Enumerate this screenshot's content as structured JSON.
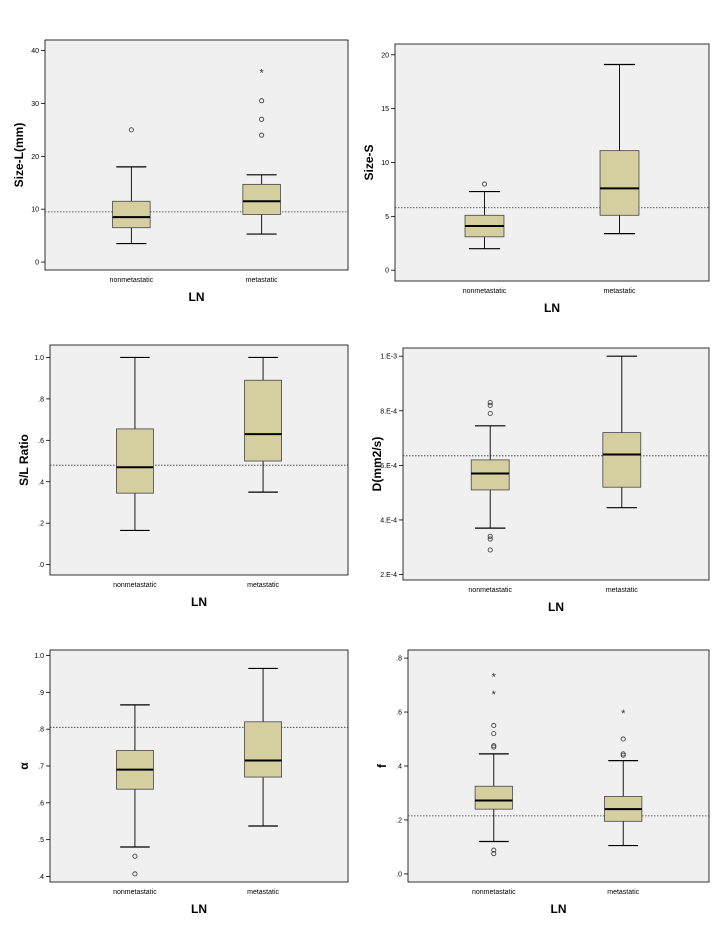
{
  "chart_data": [
    {
      "type": "box",
      "title": "",
      "xlabel": "LN",
      "ylabel": "Size-L(mm)",
      "ylim": [
        -1.5,
        42
      ],
      "yticks": [
        0,
        10,
        20,
        30,
        40
      ],
      "ytick_labels": [
        "0",
        "10",
        "20",
        "30",
        "40"
      ],
      "reference_line": 9.5,
      "categories": [
        "nonmetastatic",
        "metastatic"
      ],
      "boxes": [
        {
          "min": 3.5,
          "q1": 6.5,
          "median": 8.5,
          "q3": 11.5,
          "max": 18,
          "outliers": [
            25
          ],
          "extremes": []
        },
        {
          "min": 5.3,
          "q1": 9,
          "median": 11.5,
          "q3": 14.7,
          "max": 16.5,
          "outliers": [
            30.5,
            27,
            24
          ],
          "extremes": [
            36
          ]
        }
      ]
    },
    {
      "type": "box",
      "title": "",
      "xlabel": "LN",
      "ylabel": "Size-S",
      "ylim": [
        -1,
        21
      ],
      "yticks": [
        0,
        5,
        10,
        15,
        20
      ],
      "ytick_labels": [
        "0",
        "5",
        "10",
        "15",
        "20"
      ],
      "reference_line": 5.8,
      "categories": [
        "nonmetastatic",
        "metastatic"
      ],
      "boxes": [
        {
          "min": 2,
          "q1": 3.1,
          "median": 4.1,
          "q3": 5.1,
          "max": 7.3,
          "outliers": [
            8
          ],
          "extremes": []
        },
        {
          "min": 3.4,
          "q1": 5.1,
          "median": 7.6,
          "q3": 11.1,
          "max": 19.1,
          "outliers": [],
          "extremes": []
        }
      ]
    },
    {
      "type": "box",
      "title": "",
      "xlabel": "LN",
      "ylabel": "S/L Ratio",
      "ylim": [
        -0.05,
        1.06
      ],
      "yticks": [
        0,
        0.2,
        0.4,
        0.6,
        0.8,
        1.0
      ],
      "ytick_labels": [
        ".0",
        ".2",
        ".4",
        ".6",
        ".8",
        "1.0"
      ],
      "reference_line": 0.48,
      "categories": [
        "nonmetastatic",
        "metastatic"
      ],
      "boxes": [
        {
          "min": 0.165,
          "q1": 0.345,
          "median": 0.47,
          "q3": 0.655,
          "max": 1.0,
          "outliers": [],
          "extremes": []
        },
        {
          "min": 0.35,
          "q1": 0.5,
          "median": 0.63,
          "q3": 0.89,
          "max": 1.0,
          "outliers": [],
          "extremes": []
        }
      ]
    },
    {
      "type": "box",
      "title": "",
      "xlabel": "LN",
      "ylabel": "D(mm2/s)",
      "ylim": [
        0.00018,
        0.00103
      ],
      "yticks": [
        0.0002,
        0.0004,
        0.0006,
        0.0008,
        0.001
      ],
      "ytick_labels": [
        "2.E-4",
        "4.E-4",
        "6.E-4",
        "8.E-4",
        "1.E-3"
      ],
      "reference_line": 0.000635,
      "categories": [
        "nonmetastatic",
        "metastatic"
      ],
      "boxes": [
        {
          "min": 0.00037,
          "q1": 0.00051,
          "median": 0.00057,
          "q3": 0.00062,
          "max": 0.000745,
          "outliers": [
            0.00083,
            0.00082,
            0.00079,
            0.00034,
            0.00033,
            0.00029
          ],
          "extremes": []
        },
        {
          "min": 0.000445,
          "q1": 0.00052,
          "median": 0.00064,
          "q3": 0.00072,
          "max": 0.001,
          "outliers": [],
          "extremes": []
        }
      ]
    },
    {
      "type": "box",
      "title": "",
      "xlabel": "LN",
      "ylabel": "α",
      "ylim": [
        0.385,
        1.015
      ],
      "yticks": [
        0.4,
        0.5,
        0.6,
        0.7,
        0.8,
        0.9,
        1.0
      ],
      "ytick_labels": [
        ".4",
        ".5",
        ".6",
        ".7",
        ".8",
        ".9",
        "1.0"
      ],
      "reference_line": 0.805,
      "categories": [
        "nonmetastatic",
        "metastatic"
      ],
      "boxes": [
        {
          "min": 0.48,
          "q1": 0.637,
          "median": 0.69,
          "q3": 0.742,
          "max": 0.866,
          "outliers": [
            0.455,
            0.407
          ],
          "extremes": []
        },
        {
          "min": 0.537,
          "q1": 0.67,
          "median": 0.715,
          "q3": 0.82,
          "max": 0.965,
          "outliers": [],
          "extremes": []
        }
      ]
    },
    {
      "type": "box",
      "title": "",
      "xlabel": "LN",
      "ylabel": "f",
      "ylim": [
        -0.03,
        0.83
      ],
      "yticks": [
        0,
        0.2,
        0.4,
        0.6,
        0.8
      ],
      "ytick_labels": [
        ".0",
        ".2",
        ".4",
        ".6",
        ".8"
      ],
      "reference_line": 0.215,
      "categories": [
        "nonmetastatic",
        "metastatic"
      ],
      "boxes": [
        {
          "min": 0.12,
          "q1": 0.24,
          "median": 0.272,
          "q3": 0.325,
          "max": 0.445,
          "outliers": [
            0.55,
            0.52,
            0.475,
            0.47,
            0.088,
            0.075
          ],
          "extremes": [
            0.735,
            0.67
          ]
        },
        {
          "min": 0.105,
          "q1": 0.195,
          "median": 0.24,
          "q3": 0.287,
          "max": 0.42,
          "outliers": [
            0.5,
            0.445,
            0.44
          ],
          "extremes": [
            0.6
          ]
        }
      ]
    }
  ],
  "style": {
    "box_fill": "#d5cfa0",
    "plot_bg": "#f0f0f0",
    "line": "#000000"
  },
  "symbols": {
    "outlier": "○",
    "extreme": "*"
  }
}
